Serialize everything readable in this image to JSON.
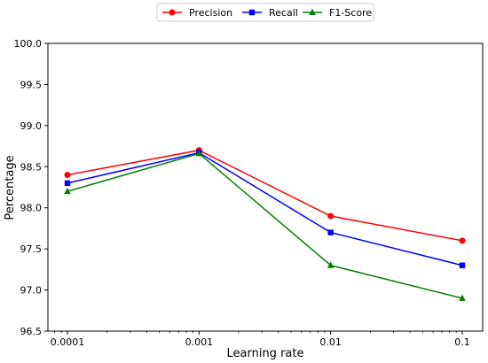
{
  "chart_data": {
    "type": "line",
    "x_scale": "log",
    "x": [
      0.0001,
      0.001,
      0.01,
      0.1
    ],
    "x_tick_labels": [
      "0.0001",
      "0.001",
      "0.01",
      "0.1"
    ],
    "xlabel": "Learning rate",
    "ylabel": "Percentage",
    "ylim": [
      96.5,
      100.0
    ],
    "y_ticks": [
      96.5,
      97.0,
      97.5,
      98.0,
      98.5,
      99.0,
      99.5,
      100.0
    ],
    "y_tick_labels": [
      "96.5",
      "97.0",
      "97.5",
      "98.0",
      "98.5",
      "99.0",
      "99.5",
      "100.0"
    ],
    "grid": false,
    "legend_position": "top-center",
    "series": [
      {
        "name": "Precision",
        "color": "#ff0000",
        "marker": "circle",
        "values": [
          98.4,
          98.7,
          97.9,
          97.6
        ]
      },
      {
        "name": "Recall",
        "color": "#0000ff",
        "marker": "square",
        "values": [
          98.3,
          98.67,
          97.7,
          97.3
        ]
      },
      {
        "name": "F1-Score",
        "color": "#008000",
        "marker": "triangle",
        "values": [
          98.2,
          98.66,
          97.3,
          96.9
        ]
      }
    ]
  }
}
